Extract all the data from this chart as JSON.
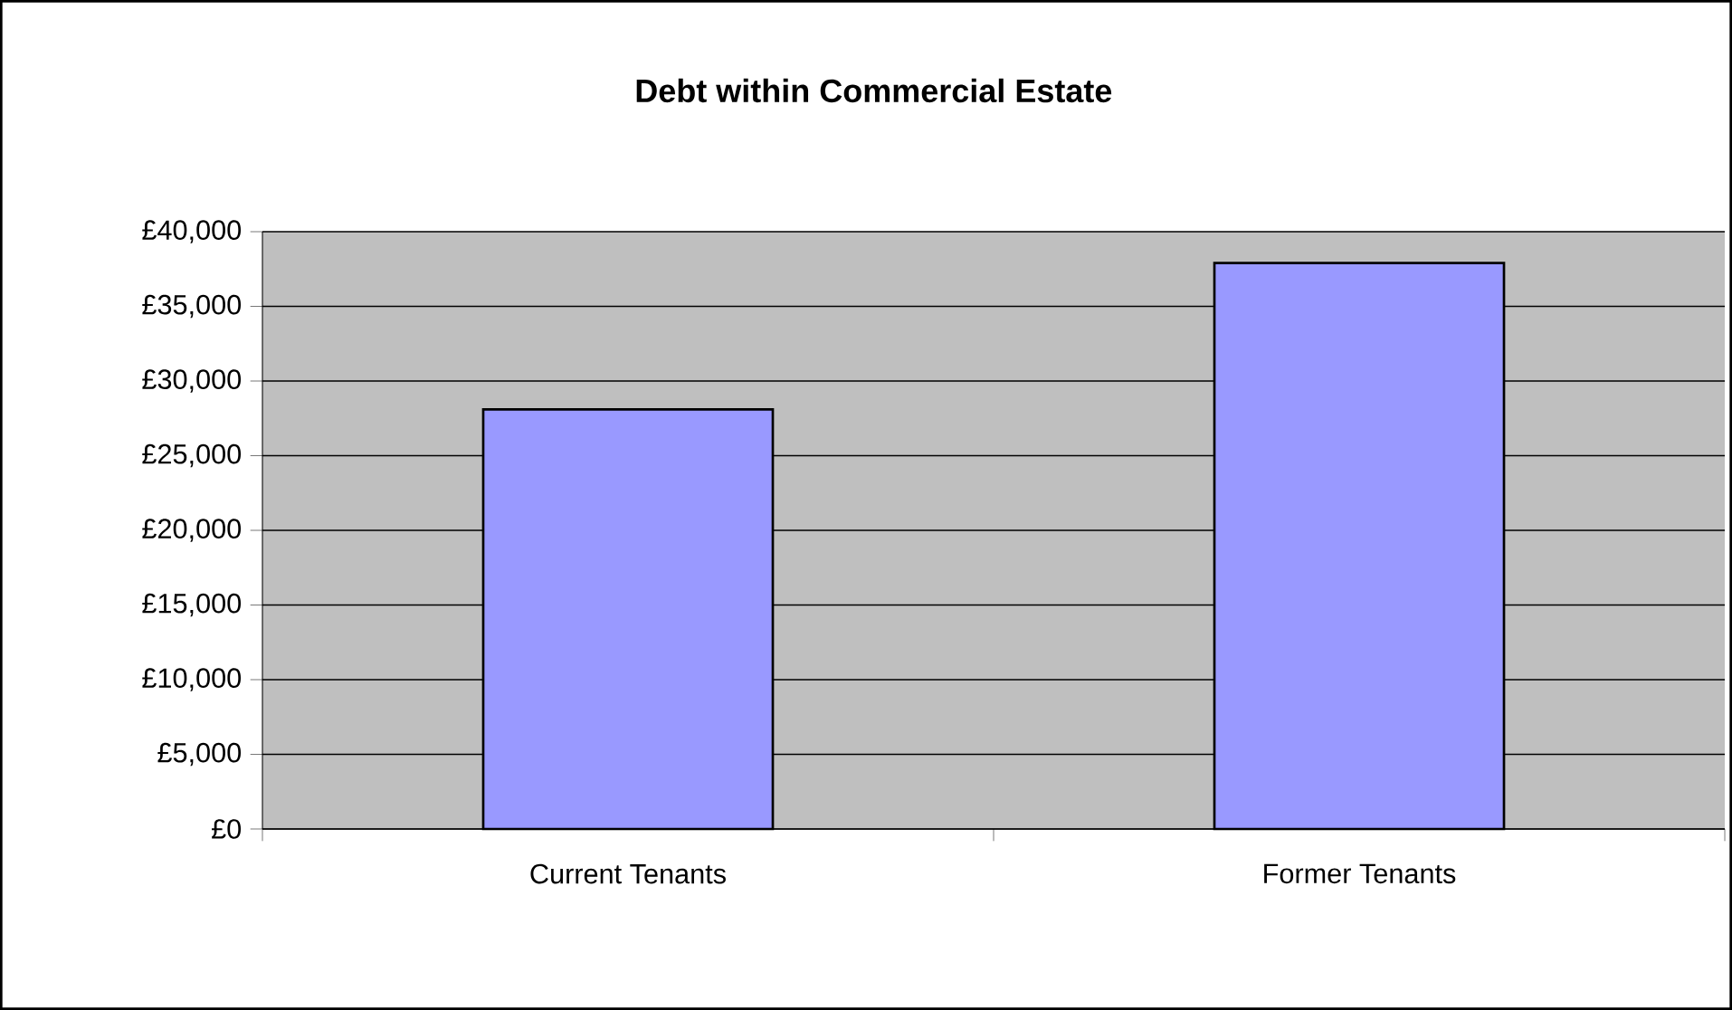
{
  "chart_data": {
    "type": "bar",
    "title": "Debt within Commercial Estate",
    "categories": [
      "Current Tenants",
      "Former Tenants"
    ],
    "values": [
      28100,
      37900
    ],
    "color": "#9999ff",
    "ylim": [
      0,
      40000
    ],
    "yticks": [
      {
        "value": 0,
        "label": "£0"
      },
      {
        "value": 5000,
        "label": "£5,000"
      },
      {
        "value": 10000,
        "label": "£10,000"
      },
      {
        "value": 15000,
        "label": "£15,000"
      },
      {
        "value": 20000,
        "label": "£20,000"
      },
      {
        "value": 25000,
        "label": "£25,000"
      },
      {
        "value": 30000,
        "label": "£30,000"
      },
      {
        "value": 35000,
        "label": "£35,000"
      },
      {
        "value": 40000,
        "label": "£40,000"
      }
    ],
    "grid": "y"
  }
}
